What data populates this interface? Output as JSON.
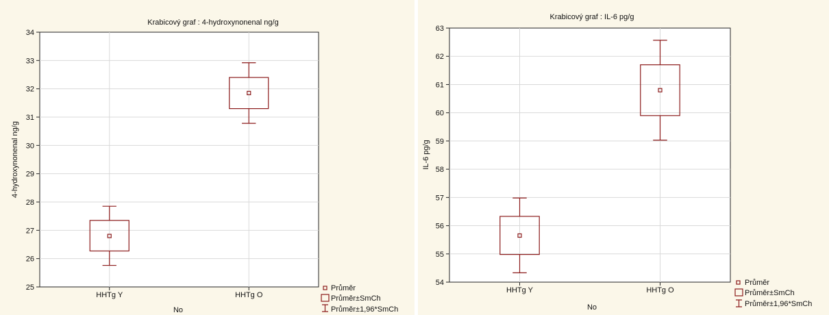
{
  "chart_data": [
    {
      "type": "box",
      "title": "Krabicový graf :  4-hydroxynonenal ng/g",
      "xlabel": "No",
      "ylabel": "4-hydroxynonenal ng/g",
      "ylim": [
        25,
        34
      ],
      "yticks": [
        25,
        26,
        27,
        28,
        29,
        30,
        31,
        32,
        33,
        34
      ],
      "categories": [
        "HHTg Y",
        "HHTg O"
      ],
      "boxes": [
        {
          "category": "HHTg Y",
          "mean": 26.8,
          "box_low": 26.27,
          "box_high": 27.35,
          "whisker_low": 25.76,
          "whisker_high": 27.85
        },
        {
          "category": "HHTg O",
          "mean": 31.85,
          "box_low": 31.3,
          "box_high": 32.4,
          "whisker_low": 30.78,
          "whisker_high": 32.92
        }
      ],
      "legend": [
        "Průměr",
        "Průměr±SmCh",
        "Průměr±1,96*SmCh"
      ],
      "legend_position": "bottom-right",
      "grid": true
    },
    {
      "type": "box",
      "title": "Krabicový  graf :  IL-6 pg/g",
      "xlabel": "No",
      "ylabel": "IL-6 pg/g",
      "ylim": [
        54,
        63
      ],
      "yticks": [
        54,
        55,
        56,
        57,
        58,
        59,
        60,
        61,
        62,
        63
      ],
      "categories": [
        "HHTg Y",
        "HHTg O"
      ],
      "boxes": [
        {
          "category": "HHTg Y",
          "mean": 55.65,
          "box_low": 54.98,
          "box_high": 56.33,
          "whisker_low": 54.33,
          "whisker_high": 56.98
        },
        {
          "category": "HHTg O",
          "mean": 60.8,
          "box_low": 59.9,
          "box_high": 61.7,
          "whisker_low": 59.03,
          "whisker_high": 62.57
        }
      ],
      "legend": [
        "Průměr",
        "Průměr±SmCh",
        "Průměr±1,96*SmCh"
      ],
      "legend_position": "bottom-right",
      "grid": true
    }
  ],
  "colors": {
    "mark": "#8b1a1a",
    "panel_background": "#fbf7e9",
    "grid": "#d9d9d9"
  }
}
